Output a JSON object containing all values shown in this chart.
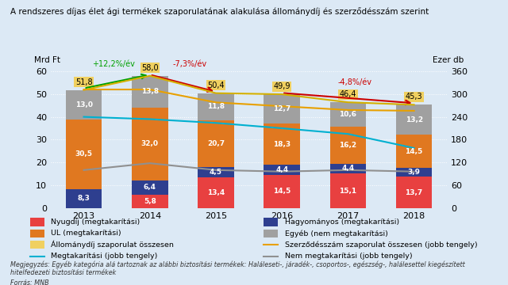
{
  "title": "A rendszeres díjas élet ági termékek szaporulatának alakulása állománydíj és szerződésszám szerint",
  "years": [
    2013,
    2014,
    2015,
    2016,
    2017,
    2018
  ],
  "nyugdij": [
    0.0,
    5.8,
    13.4,
    14.5,
    15.1,
    13.7
  ],
  "hagyomanyos": [
    8.3,
    6.4,
    4.5,
    4.4,
    4.4,
    3.9
  ],
  "ul": [
    30.5,
    32.0,
    20.7,
    18.3,
    16.2,
    14.5
  ],
  "egyeb": [
    13.0,
    13.8,
    11.8,
    12.7,
    10.6,
    13.2
  ],
  "allomanydij_total": [
    51.8,
    58.0,
    50.4,
    49.9,
    46.4,
    45.3
  ],
  "szerzodessz_right": [
    312,
    312,
    278,
    268,
    258,
    256
  ],
  "megtakaritasi_right": [
    240,
    234,
    224,
    210,
    195,
    158
  ],
  "nem_megtakaritasi_right": [
    100,
    118,
    100,
    96,
    100,
    96
  ],
  "colors": {
    "nyugdij": "#e84040",
    "hagyomanyos": "#2e3f8f",
    "ul": "#e07820",
    "egyeb": "#a0a0a0",
    "allomanydij_line": "#d4b000",
    "szerzodessz_line": "#e8a000",
    "megtakaritasi_line": "#00b0d0",
    "nem_megtakaritasi_line": "#909090"
  },
  "ylabel_left": "Mrd Ft",
  "ylabel_right": "Ezer db",
  "ylim_left": [
    0,
    65
  ],
  "ylim_right": [
    0,
    390
  ],
  "yticks_left": [
    0,
    10,
    20,
    30,
    40,
    50,
    60
  ],
  "yticks_right": [
    0,
    60,
    120,
    180,
    240,
    300,
    360
  ],
  "background_color": "#dce9f5",
  "note": "Megjegyzés: Egyéb kategória alá tartoznak az alábbi biztosítási termékek: Haláleseti-, járadék-, csoportos-, egészség-, halálesettel kiegészített\nhitelfedezeti biztosítási termékek",
  "source": "Forrás: MNB"
}
